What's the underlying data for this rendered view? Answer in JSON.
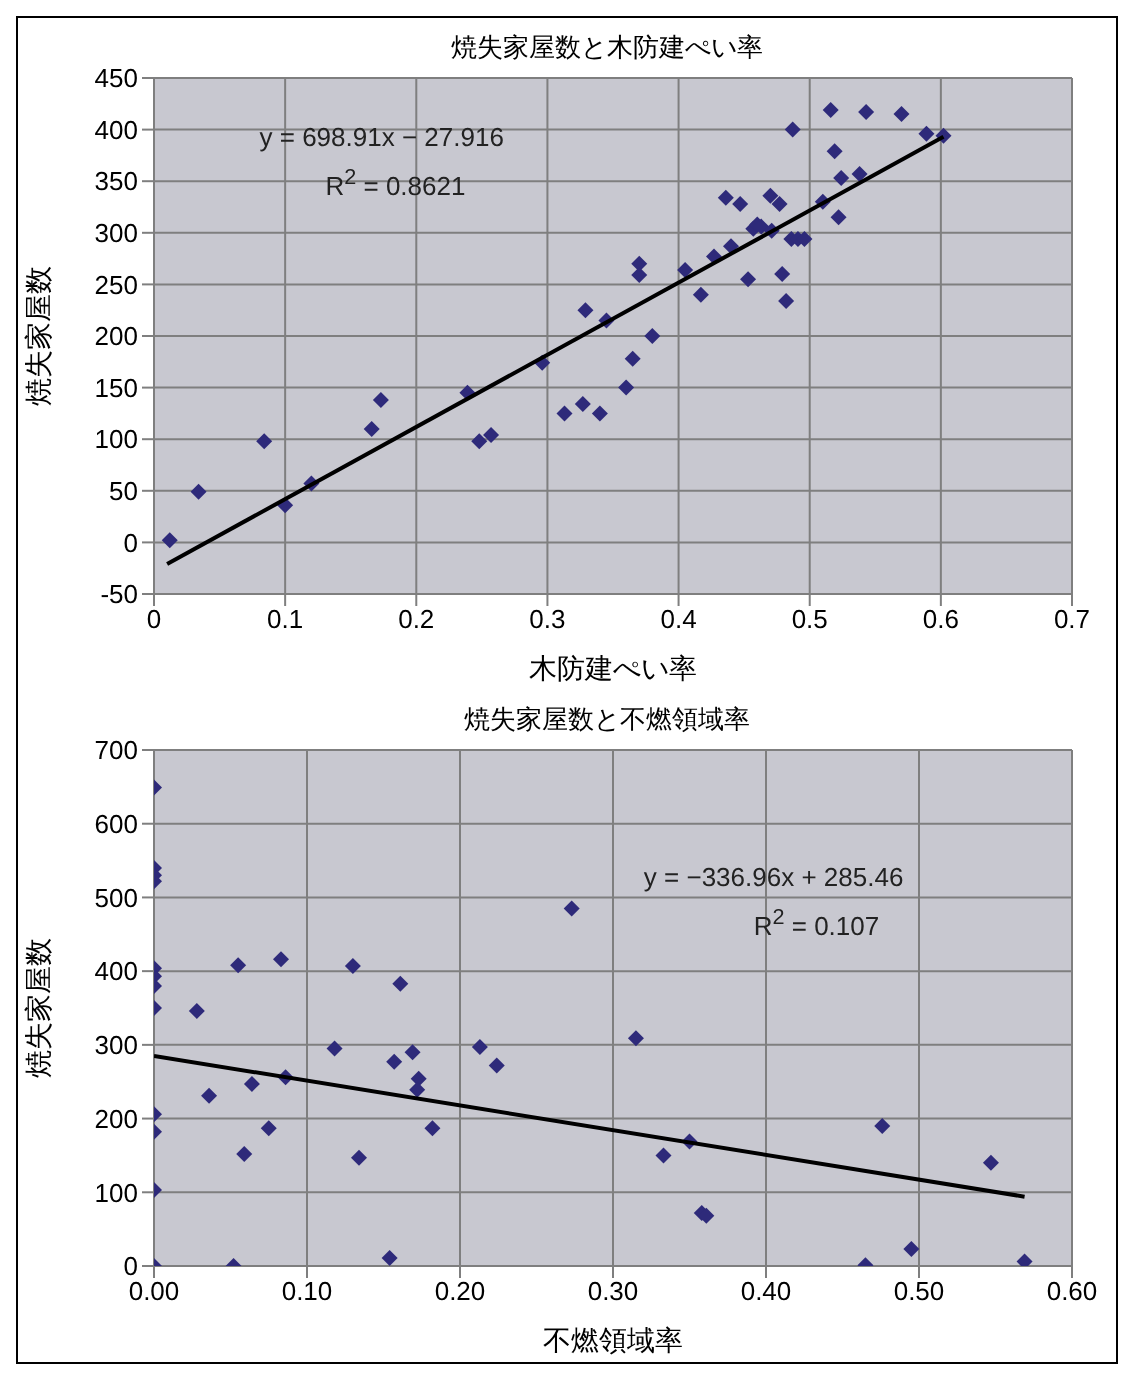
{
  "chart_data": [
    {
      "type": "scatter",
      "title": "焼失家屋数と木防建ぺい率",
      "xlabel": "木防建ぺい率",
      "ylabel": "焼失家屋数",
      "grid": true,
      "xlim": [
        0,
        0.7
      ],
      "xticks": [
        0,
        0.1,
        0.2,
        0.3,
        0.4,
        0.5,
        0.6,
        0.7
      ],
      "ylim": [
        -50,
        450
      ],
      "yticks": [
        -50,
        0,
        50,
        100,
        150,
        200,
        250,
        300,
        350,
        400,
        450
      ],
      "annotations": [
        "y = 698.91x − 27.916",
        "R$^{2}$ = 0.8621"
      ],
      "series": [
        {
          "type": "scatter",
          "marker": "diamond",
          "color": "#2e2a7a",
          "x": [
            0.012,
            0.034,
            0.084,
            0.1,
            0.12,
            0.166,
            0.173,
            0.239,
            0.248,
            0.257,
            0.296,
            0.313,
            0.327,
            0.329,
            0.34,
            0.345,
            0.36,
            0.365,
            0.37,
            0.37,
            0.38,
            0.405,
            0.417,
            0.427,
            0.436,
            0.44,
            0.447,
            0.453,
            0.457,
            0.46,
            0.463,
            0.47,
            0.471,
            0.477,
            0.479,
            0.482,
            0.487,
            0.486,
            0.491,
            0.496,
            0.51,
            0.516,
            0.519,
            0.524,
            0.522,
            0.538,
            0.543,
            0.57,
            0.589,
            0.602
          ],
          "values": [
            2,
            49,
            98,
            36,
            57,
            110,
            138,
            145,
            98,
            104,
            174,
            125,
            134,
            225,
            125,
            215,
            150,
            178,
            270,
            259,
            200,
            264,
            240,
            277,
            334,
            287,
            328,
            255,
            304,
            308,
            306,
            336,
            302,
            328,
            260,
            234,
            400,
            294,
            294,
            294,
            330,
            419,
            379,
            353,
            315,
            357,
            417,
            415,
            396,
            394
          ]
        },
        {
          "type": "line",
          "color": "#000000",
          "x": [
            0.01,
            0.602
          ],
          "values": [
            -21,
            393
          ]
        }
      ]
    },
    {
      "type": "scatter",
      "title": "焼失家屋数と不燃領域率",
      "xlabel": "不燃領域率",
      "ylabel": "焼失家屋数",
      "grid": true,
      "xlim": [
        0,
        0.6
      ],
      "xticks": [
        {
          "value": 0,
          "label": "0.00"
        },
        {
          "value": 0.1,
          "label": "0.10"
        },
        {
          "value": 0.2,
          "label": "0.20"
        },
        {
          "value": 0.3,
          "label": "0.30"
        },
        {
          "value": 0.4,
          "label": "0.40"
        },
        {
          "value": 0.5,
          "label": "0.50"
        },
        {
          "value": 0.6,
          "label": "0.60"
        }
      ],
      "ylim": [
        0,
        700
      ],
      "yticks": [
        0,
        100,
        200,
        300,
        400,
        500,
        600,
        700
      ],
      "annotations": [
        "y = −336.96x + 285.46",
        "R$^{2}$ = 0.107"
      ],
      "series": [
        {
          "type": "scatter",
          "marker": "diamond",
          "color": "#2e2a7a",
          "x": [
            0,
            0,
            0,
            0,
            0,
            0,
            0,
            0,
            0,
            0,
            0,
            0,
            0.028,
            0.036,
            0.052,
            0.055,
            0.059,
            0.064,
            0.075,
            0.083,
            0.086,
            0.118,
            0.13,
            0.134,
            0.154,
            0.157,
            0.161,
            0.169,
            0.173,
            0.172,
            0.182,
            0.213,
            0.224,
            0.273,
            0.315,
            0.333,
            0.35,
            0.358,
            0.361,
            0.465,
            0.476,
            0.495,
            0.547,
            0.569
          ],
          "values": [
            649,
            540,
            530,
            522,
            404,
            393,
            380,
            350,
            206,
            182,
            103,
            0,
            346,
            231,
            0,
            408,
            152,
            247,
            187,
            416,
            256,
            295,
            407,
            147,
            11,
            277,
            383,
            290,
            254,
            239,
            187,
            297,
            272,
            485,
            309,
            150,
            169,
            72,
            68,
            1,
            190,
            23,
            140,
            6
          ]
        },
        {
          "type": "line",
          "color": "#000000",
          "x": [
            0,
            0.569
          ],
          "values": [
            285,
            94
          ]
        }
      ]
    }
  ]
}
